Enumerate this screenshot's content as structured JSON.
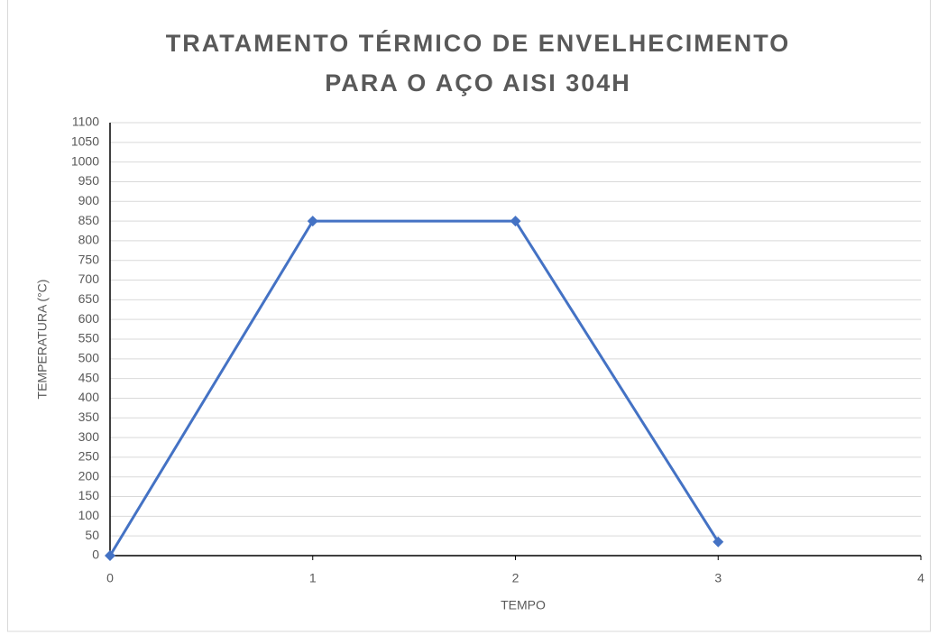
{
  "chart_data": {
    "type": "line",
    "title": [
      "TRATAMENTO TÉRMICO DE ENVELHECIMENTO",
      "PARA O AÇO AISI 304H"
    ],
    "xlabel": "TEMPO",
    "ylabel": "TEMPERATURA (°C)",
    "x": [
      0,
      1,
      2,
      3
    ],
    "series": [
      {
        "color": "#4472c4",
        "values": [
          0,
          850,
          850,
          35
        ]
      }
    ],
    "xlim": [
      0,
      4
    ],
    "xticks": [
      0,
      1,
      2,
      3,
      4
    ],
    "ylim": [
      0,
      1100
    ],
    "yticks": [
      0,
      50,
      100,
      150,
      200,
      250,
      300,
      350,
      400,
      450,
      500,
      550,
      600,
      650,
      700,
      750,
      800,
      850,
      900,
      950,
      1000,
      1050,
      1100
    ],
    "grid": true
  }
}
